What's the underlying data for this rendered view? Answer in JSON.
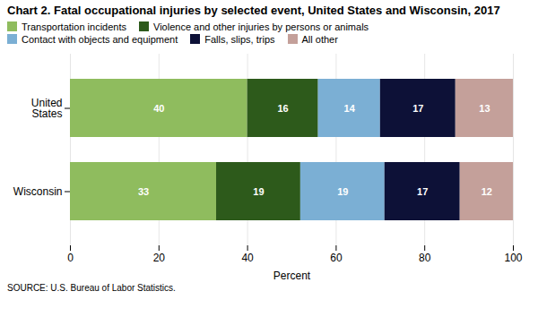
{
  "chart_data": {
    "type": "bar",
    "orientation": "horizontal",
    "stacked": true,
    "title": "Chart 2.  Fatal occupational injuries by selected event, United States and Wisconsin, 2017",
    "categories": [
      "United\nStates",
      "Wisconsin"
    ],
    "series": [
      {
        "name": "Transportation incidents",
        "color": "#8fbc5e",
        "values": [
          40,
          33
        ]
      },
      {
        "name": "Violence and other injuries by persons or animals",
        "color": "#2d5a1b",
        "values": [
          16,
          19
        ]
      },
      {
        "name": "Contact with objects and equipment",
        "color": "#7bafd4",
        "values": [
          14,
          19
        ]
      },
      {
        "name": "Falls, slips, trips",
        "color": "#0d1137",
        "values": [
          17,
          17
        ]
      },
      {
        "name": "All other",
        "color": "#c4a09a",
        "values": [
          13,
          12
        ]
      }
    ],
    "xlabel": "Percent",
    "xlim": [
      0,
      100
    ],
    "xticks": [
      0,
      20,
      40,
      60,
      80,
      100
    ],
    "grid": true,
    "data_labels": true,
    "source": "SOURCE: U.S. Bureau of Labor Statistics."
  }
}
